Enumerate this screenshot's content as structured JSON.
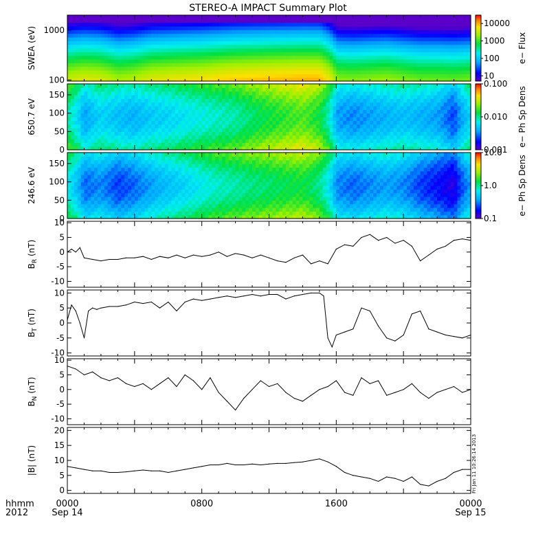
{
  "title": "STEREO-A IMPACT Summary Plot",
  "footer": {
    "row1_label": "hhmm",
    "row2_label": "2012",
    "date_start": "Sep 14",
    "date_end": "Sep 15"
  },
  "timestamp_note": "Fri Jan 11 10:26:14 2013",
  "chart_data": [
    {
      "type": "heatmap",
      "ylabel": "SWEA (eV)",
      "yscale": "log",
      "ylim": [
        95,
        2000
      ],
      "yticks": [
        "1000",
        "100"
      ],
      "colorbar": {
        "label": "e− Flux",
        "scale": "log",
        "range": [
          5,
          30000
        ],
        "ticks": [
          "10000",
          "1000",
          "100",
          "10"
        ]
      },
      "x_hours": [
        0,
        1,
        2,
        3,
        4,
        5,
        6,
        7,
        8,
        9,
        10,
        11,
        12,
        13,
        14,
        15,
        16,
        17,
        18,
        19,
        20,
        21,
        22,
        23,
        24
      ],
      "low_energy_flux_100eV": [
        3500,
        4500,
        4000,
        2500,
        3000,
        4500,
        5000,
        5500,
        6000,
        7000,
        8000,
        8500,
        9000,
        9500,
        10000,
        10000,
        2000,
        1800,
        2000,
        2200,
        1800,
        1500,
        1500,
        1400,
        1600
      ]
    },
    {
      "type": "heatmap",
      "ylabel": "650.7 eV",
      "ylim": [
        0,
        180
      ],
      "yticks": [
        "150",
        "100",
        "50",
        "0"
      ],
      "colorbar": {
        "label": "e− Ph Sp Dens",
        "scale": "log",
        "range": [
          0.001,
          0.1
        ],
        "ticks": [
          "0.100",
          "0.010",
          "0.001"
        ]
      },
      "x_hours": [
        0,
        1,
        2,
        3,
        4,
        5,
        6,
        7,
        8,
        9,
        10,
        11,
        12,
        13,
        14,
        15,
        16,
        17,
        18,
        19,
        20,
        21,
        22,
        23,
        24
      ],
      "mean_density": [
        0.02,
        0.008,
        0.012,
        0.01,
        0.009,
        0.011,
        0.012,
        0.014,
        0.016,
        0.018,
        0.02,
        0.025,
        0.03,
        0.035,
        0.04,
        0.03,
        0.008,
        0.007,
        0.008,
        0.009,
        0.01,
        0.009,
        0.008,
        0.005,
        0.012
      ]
    },
    {
      "type": "heatmap",
      "ylabel": "246.6 eV",
      "ylim": [
        0,
        180
      ],
      "yticks": [
        "150",
        "100",
        "50",
        "0"
      ],
      "colorbar": {
        "label": "e− Ph Sp Dens",
        "scale": "log",
        "range": [
          0.1,
          10
        ],
        "ticks": [
          "10.0",
          "1.0",
          "0.1"
        ]
      },
      "x_hours": [
        0,
        1,
        2,
        3,
        4,
        5,
        6,
        7,
        8,
        9,
        10,
        11,
        12,
        13,
        14,
        15,
        16,
        17,
        18,
        19,
        20,
        21,
        22,
        23,
        24
      ],
      "mean_density": [
        1.5,
        0.6,
        0.7,
        0.5,
        0.6,
        0.8,
        1.0,
        1.2,
        1.5,
        1.8,
        2.0,
        2.3,
        2.5,
        2.8,
        3.0,
        2.2,
        0.7,
        0.6,
        0.7,
        0.8,
        0.7,
        0.5,
        0.4,
        0.3,
        0.8
      ]
    },
    {
      "type": "line",
      "ylabel": "B",
      "ylabel_sub": "R",
      "ylabel_unit": "(nT)",
      "ylim": [
        -12,
        10.5
      ],
      "yticks": [
        "10",
        "5",
        "0",
        "-5",
        "-10"
      ],
      "x_hours": [
        0,
        0.25,
        0.5,
        0.75,
        1,
        1.5,
        2,
        2.5,
        3,
        3.5,
        4,
        4.5,
        5,
        5.5,
        6,
        6.5,
        7,
        7.5,
        8,
        8.5,
        9,
        9.5,
        10,
        10.5,
        11,
        11.5,
        12,
        12.5,
        13,
        13.5,
        14,
        14.5,
        15,
        15.5,
        16,
        16.5,
        17,
        17.5,
        18,
        18.5,
        19,
        19.5,
        20,
        20.5,
        21,
        21.5,
        22,
        22.5,
        23,
        23.5,
        24
      ],
      "values": [
        0,
        1,
        0,
        1.5,
        -2,
        -2.5,
        -3,
        -2.5,
        -2.5,
        -2,
        -2,
        -1.5,
        -2.5,
        -1.5,
        -2,
        -1,
        -2,
        -1,
        -1.5,
        -1,
        0,
        -1.5,
        -0.5,
        -1,
        -2,
        -1,
        -2,
        -3,
        -3.5,
        -2,
        -1,
        -4,
        -3,
        -4,
        1,
        2.5,
        2,
        5,
        6,
        4,
        5,
        3,
        4,
        2,
        -3,
        -1,
        1,
        2,
        4,
        4.5,
        4
      ]
    },
    {
      "type": "line",
      "ylabel": "B",
      "ylabel_sub": "T",
      "ylabel_unit": "(nT)",
      "ylim": [
        -11,
        11
      ],
      "yticks": [
        "10",
        "5",
        "0",
        "-5",
        "-10"
      ],
      "x_hours": [
        0,
        0.25,
        0.5,
        0.75,
        1,
        1.25,
        1.5,
        1.75,
        2,
        2.5,
        3,
        3.5,
        4,
        4.5,
        5,
        5.5,
        6,
        6.5,
        7,
        7.5,
        8,
        8.5,
        9,
        9.5,
        10,
        10.5,
        11,
        11.5,
        12,
        12.5,
        13,
        13.5,
        14,
        14.5,
        15,
        15.25,
        15.5,
        15.75,
        16,
        16.5,
        17,
        17.5,
        18,
        18.5,
        19,
        19.5,
        20,
        20.5,
        21,
        21.5,
        22,
        22.5,
        23,
        23.5,
        24
      ],
      "values": [
        1,
        6,
        4,
        0,
        -5,
        4,
        5,
        4.5,
        5,
        5.5,
        5.5,
        6,
        7,
        6.5,
        7,
        5,
        7,
        4,
        7,
        8,
        7.5,
        8,
        8.5,
        9,
        8.5,
        9,
        9.5,
        9,
        9.5,
        9.5,
        8,
        9,
        9.5,
        10,
        10,
        9,
        -5,
        -8,
        -4,
        -3,
        -2,
        5,
        4,
        -1,
        -5,
        -6,
        -4,
        3,
        4,
        -2,
        -3,
        -4,
        -4.5,
        -5,
        -4
      ]
    },
    {
      "type": "line",
      "ylabel": "B",
      "ylabel_sub": "N",
      "ylabel_unit": "(nT)",
      "ylim": [
        -12,
        10.5
      ],
      "yticks": [
        "10",
        "5",
        "0",
        "-5",
        "-10"
      ],
      "x_hours": [
        0,
        0.5,
        1,
        1.5,
        2,
        2.5,
        3,
        3.5,
        4,
        4.5,
        5,
        5.5,
        6,
        6.5,
        7,
        7.5,
        8,
        8.5,
        9,
        9.5,
        10,
        10.5,
        11,
        11.5,
        12,
        12.5,
        13,
        13.5,
        14,
        14.5,
        15,
        15.5,
        16,
        16.5,
        17,
        17.5,
        18,
        18.5,
        19,
        19.5,
        20,
        20.5,
        21,
        21.5,
        22,
        22.5,
        23,
        23.5,
        24
      ],
      "values": [
        8,
        7,
        5,
        6,
        4,
        3,
        4,
        2,
        1,
        2,
        0,
        2,
        4,
        1,
        5,
        3,
        0,
        4,
        -1,
        -4,
        -7,
        -3,
        0,
        3,
        1,
        2,
        -1,
        -3,
        -4,
        -2,
        0,
        1,
        3,
        -1,
        -2,
        4,
        2,
        3,
        -2,
        -1,
        0,
        2,
        -1,
        -3,
        -1,
        0,
        1,
        -1,
        0
      ]
    },
    {
      "type": "line",
      "ylabel": "|B| (nT)",
      "ylim": [
        -1,
        21
      ],
      "yticks": [
        "20",
        "15",
        "10",
        "5",
        "0"
      ],
      "x_hours": [
        0,
        0.5,
        1,
        1.5,
        2,
        2.5,
        3,
        3.5,
        4,
        4.5,
        5,
        5.5,
        6,
        6.5,
        7,
        7.5,
        8,
        8.5,
        9,
        9.5,
        10,
        10.5,
        11,
        11.5,
        12,
        12.5,
        13,
        13.5,
        14,
        14.5,
        15,
        15.5,
        16,
        16.5,
        17,
        17.5,
        18,
        18.5,
        19,
        19.5,
        20,
        20.5,
        21,
        21.5,
        22,
        22.5,
        23,
        23.5,
        24
      ],
      "values": [
        8,
        7.5,
        7,
        6.5,
        6.5,
        6,
        6,
        6.2,
        6.5,
        6.8,
        6.5,
        6.5,
        6,
        6.5,
        7,
        7.5,
        8,
        8.5,
        8.5,
        9,
        8.5,
        8.5,
        8.8,
        8.5,
        8.8,
        9,
        9,
        9.3,
        9.5,
        10,
        10.5,
        9.5,
        8,
        6,
        5,
        4.5,
        4,
        3,
        4.5,
        4,
        3,
        4.5,
        2,
        1.5,
        3,
        4,
        6,
        7,
        7
      ]
    }
  ],
  "x_axis": {
    "ticks": [
      "0000",
      "0800",
      "1600",
      "0000"
    ],
    "range_hours": [
      0,
      24
    ]
  }
}
